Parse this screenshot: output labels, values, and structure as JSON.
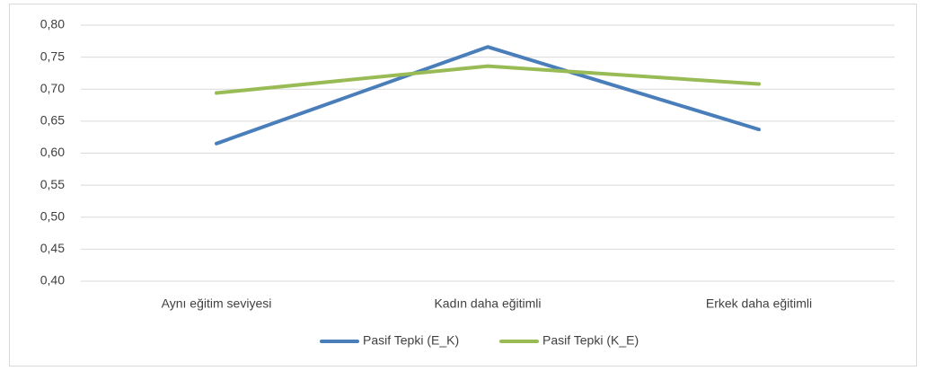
{
  "chart_data": {
    "type": "line",
    "categories": [
      "Aynı eğitim seviyesi",
      "Kadın daha eğitimli",
      "Erkek daha eğitimli"
    ],
    "series": [
      {
        "name": "Pasif Tepki (E_K)",
        "color": "#4a7ebb",
        "values": [
          0.615,
          0.766,
          0.637
        ]
      },
      {
        "name": "Pasif Tepki (K_E)",
        "color": "#98bb56",
        "values": [
          0.694,
          0.736,
          0.708
        ]
      }
    ],
    "ylim": [
      0.4,
      0.8
    ],
    "yticks": [
      {
        "value": 0.4,
        "label": "0,40"
      },
      {
        "value": 0.45,
        "label": "0,45"
      },
      {
        "value": 0.5,
        "label": "0,50"
      },
      {
        "value": 0.55,
        "label": "0,55"
      },
      {
        "value": 0.6,
        "label": "0,60"
      },
      {
        "value": 0.65,
        "label": "0,65"
      },
      {
        "value": 0.7,
        "label": "0,70"
      },
      {
        "value": 0.75,
        "label": "0,75"
      },
      {
        "value": 0.8,
        "label": "0,80"
      }
    ],
    "grid": true,
    "legend": "bottom"
  }
}
